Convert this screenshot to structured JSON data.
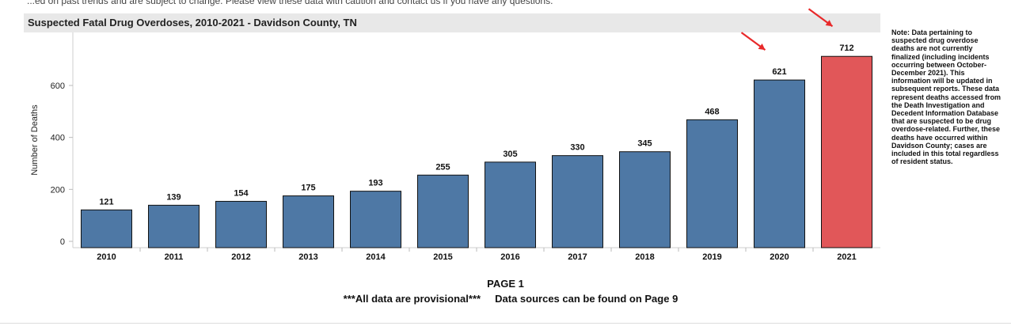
{
  "page": {
    "top_clipped_text": "...ed on past trends and are subject to change. Please view these data with caution and contact us if you have any questions.",
    "page_label": "PAGE 1",
    "footer_note": "***All data are provisional***     Data sources can be found on Page 9",
    "note": "Note: Data pertaining to suspected drug overdose deaths are not currently finalized (including incidents occurring between October-December 2021). This information will be updated in subsequent reports. These data represent deaths accessed from the Death Investigation and Decedent Information Database that are suspected to be drug overdose-related. Further, these deaths have occurred within Davidson County; cases are included in this total regardless of resident status."
  },
  "chart_data": {
    "type": "bar",
    "title": "Suspected Fatal Drug Overdoses, 2010-2021 - Davidson County, TN",
    "xlabel": "",
    "ylabel": "Number of Deaths",
    "categories": [
      "2010",
      "2011",
      "2012",
      "2013",
      "2014",
      "2015",
      "2016",
      "2017",
      "2018",
      "2019",
      "2020",
      "2021"
    ],
    "values": [
      121,
      139,
      154,
      175,
      193,
      255,
      305,
      330,
      345,
      468,
      621,
      712
    ],
    "ylim": [
      0,
      770
    ],
    "yticks": [
      0,
      200,
      400,
      600
    ],
    "grid": false,
    "colors": {
      "default_bar": "#4e78a5",
      "highlight_bar": "#e15759",
      "arrow": "#e8292a"
    },
    "highlighted": [
      "2021"
    ],
    "arrows_on": [
      "2020",
      "2021"
    ]
  }
}
